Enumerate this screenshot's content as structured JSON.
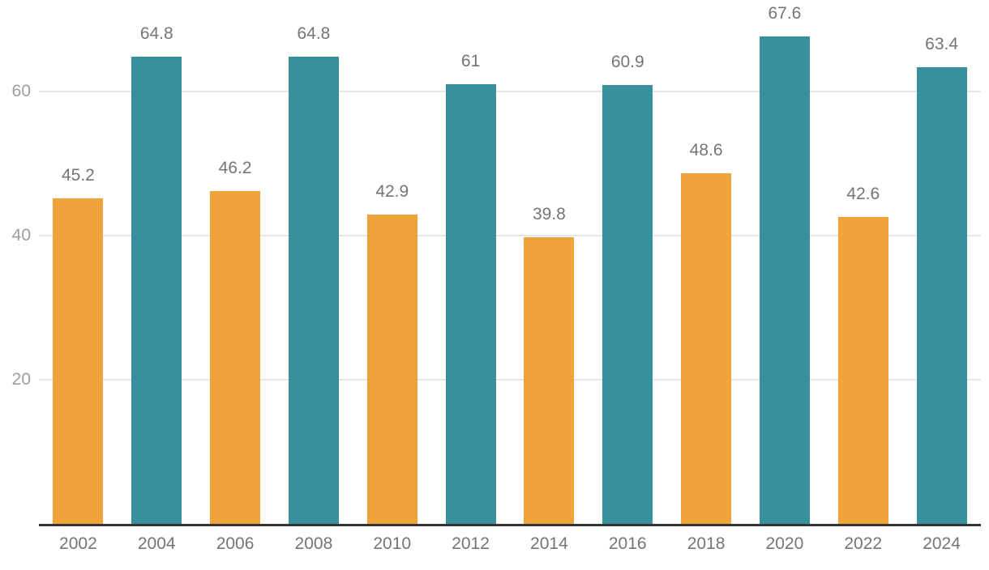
{
  "chart_style": {
    "background": "#FFFFFF",
    "axis_line_color": "#333333",
    "grid_color": "#E6E6E6",
    "y_tick_label_color": "#9E9E9E",
    "value_label_color": "#757575",
    "x_tick_label_color": "#757575",
    "bar_color_orange": "#F0A23B",
    "bar_color_teal": "#38909C"
  },
  "chart_data": {
    "type": "bar",
    "title": "",
    "xlabel": "",
    "ylabel": "",
    "categories": [
      "2002",
      "2004",
      "2006",
      "2008",
      "2010",
      "2012",
      "2014",
      "2016",
      "2018",
      "2020",
      "2022",
      "2024"
    ],
    "values": [
      45.2,
      64.8,
      46.2,
      64.8,
      42.9,
      61,
      39.8,
      60.9,
      48.6,
      67.6,
      42.6,
      63.4
    ],
    "value_labels": [
      "45.2",
      "64.8",
      "46.2",
      "64.8",
      "42.9",
      "61",
      "39.8",
      "60.9",
      "48.6",
      "67.6",
      "42.6",
      "63.4"
    ],
    "bar_colors": [
      "#F0A23B",
      "#38909C",
      "#F0A23B",
      "#38909C",
      "#F0A23B",
      "#38909C",
      "#F0A23B",
      "#38909C",
      "#F0A23B",
      "#38909C",
      "#F0A23B",
      "#38909C"
    ],
    "yticks": [
      20,
      40,
      60
    ],
    "ytick_labels": [
      "20",
      "40",
      "60"
    ],
    "ylim": [
      0,
      72.7
    ],
    "grid": true,
    "legend": "none"
  }
}
